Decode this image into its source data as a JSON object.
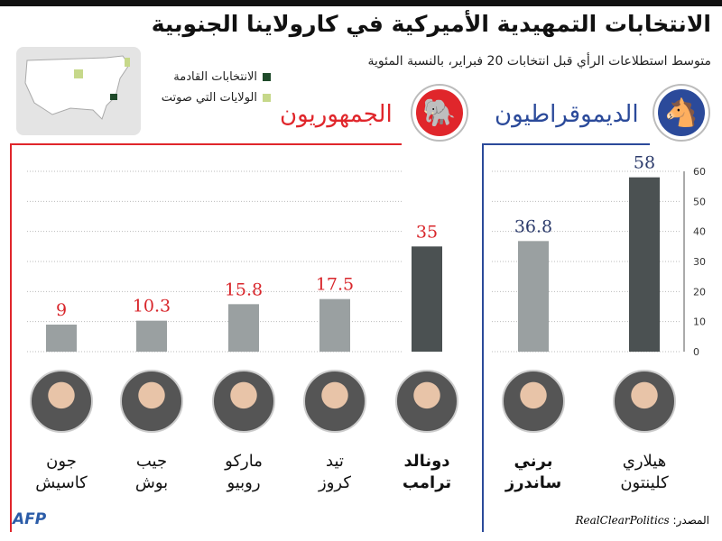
{
  "title": "الانتخابات التمهيدية الأميركية في كارولاينا الجنوبية",
  "subtitle": "متوسط استطلاعات الرأي قبل انتخابات 20 فبراير، بالنسبة المئوية",
  "legend": [
    {
      "label": "الانتخابات القادمة",
      "color": "#1f4a2a"
    },
    {
      "label": "الولايات التي صوتت",
      "color": "#c6d88a"
    }
  ],
  "parties": {
    "republican": {
      "label": "الجمهوريون",
      "color": "#e0262b",
      "icon": "elephant-icon"
    },
    "democrat": {
      "label": "الديموقراطيون",
      "color": "#2b4a9a",
      "icon": "donkey-icon"
    }
  },
  "chart_data": {
    "type": "bar",
    "ylim": [
      0,
      60
    ],
    "yticks": [
      "0",
      "10",
      "20",
      "30",
      "40",
      "50",
      "60"
    ],
    "grid": true,
    "series": [
      {
        "name": "الجمهوريون",
        "categories": [
          "جون كاسيش",
          "جيب بوش",
          "ماركو روبيو",
          "تيد كروز",
          "دونالد ترامب"
        ],
        "values": [
          9,
          10.3,
          15.8,
          17.5,
          35
        ],
        "labels": [
          "9",
          "10.3",
          "15.8",
          "17.5",
          "35"
        ]
      },
      {
        "name": "الديموقراطيون",
        "categories": [
          "برني ساندرز",
          "هيلاري كلينتون"
        ],
        "values": [
          36.8,
          58
        ],
        "labels": [
          "36.8",
          "58"
        ]
      }
    ]
  },
  "candidates": [
    {
      "first": "جون",
      "last": "كاسيش",
      "bold": false
    },
    {
      "first": "جيب",
      "last": "بوش",
      "bold": false
    },
    {
      "first": "ماركو",
      "last": "روبيو",
      "bold": false
    },
    {
      "first": "تيد",
      "last": "كروز",
      "bold": false
    },
    {
      "first": "دونالد",
      "last": "ترامب",
      "bold": true
    },
    {
      "first": "برني",
      "last": "ساندرز",
      "bold": true
    },
    {
      "first": "هيلاري",
      "last": "كلينتون",
      "bold": false
    }
  ],
  "footer": {
    "source_label": "المصدر:",
    "source": "RealClearPolitics",
    "agency": "AFP"
  }
}
